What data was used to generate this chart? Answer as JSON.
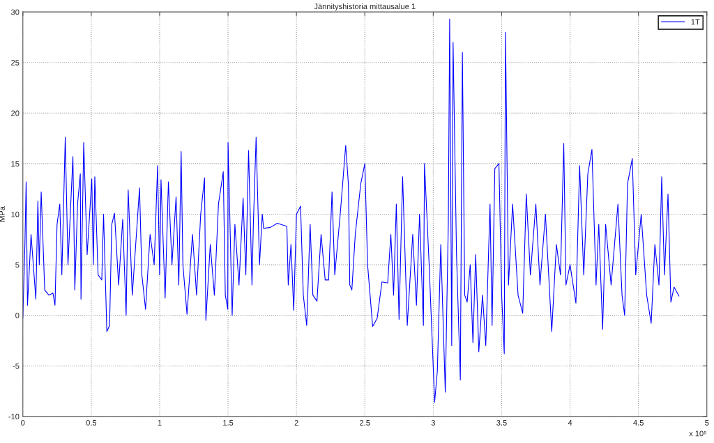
{
  "chart_data": {
    "type": "line",
    "title": "Jännityshistoria mittausalue 1",
    "ylabel": "MPa",
    "x": [
      0,
      0.015,
      0.024,
      0.034,
      0.06,
      0.095,
      0.11,
      0.12,
      0.134,
      0.16,
      0.19,
      0.22,
      0.235,
      0.25,
      0.27,
      0.285,
      0.31,
      0.33,
      0.366,
      0.38,
      0.4,
      0.42,
      0.425,
      0.445,
      0.47,
      0.504,
      0.515,
      0.526,
      0.55,
      0.577,
      0.59,
      0.614,
      0.634,
      0.65,
      0.67,
      0.7,
      0.73,
      0.755,
      0.77,
      0.8,
      0.83,
      0.853,
      0.87,
      0.897,
      0.93,
      0.96,
      0.985,
      1.0,
      1.01,
      1.04,
      1.064,
      1.09,
      1.12,
      1.14,
      1.157,
      1.17,
      1.2,
      1.24,
      1.27,
      1.3,
      1.328,
      1.338,
      1.37,
      1.4,
      1.43,
      1.465,
      1.48,
      1.498,
      1.5,
      1.53,
      1.55,
      1.58,
      1.61,
      1.63,
      1.65,
      1.675,
      1.685,
      1.705,
      1.73,
      1.75,
      1.76,
      1.81,
      1.86,
      1.93,
      1.94,
      1.96,
      1.98,
      2.0,
      2.03,
      2.05,
      2.075,
      2.1,
      2.12,
      2.15,
      2.18,
      2.21,
      2.235,
      2.26,
      2.28,
      2.32,
      2.36,
      2.38,
      2.39,
      2.405,
      2.43,
      2.47,
      2.5,
      2.52,
      2.557,
      2.59,
      2.625,
      2.667,
      2.69,
      2.71,
      2.73,
      2.75,
      2.776,
      2.81,
      2.85,
      2.877,
      2.9,
      2.928,
      2.936,
      2.97,
      3.004,
      3.01,
      3.03,
      3.055,
      3.088,
      3.11,
      3.12,
      3.135,
      3.145,
      3.17,
      3.198,
      3.213,
      3.23,
      3.248,
      3.27,
      3.29,
      3.31,
      3.333,
      3.36,
      3.384,
      3.415,
      3.43,
      3.45,
      3.48,
      3.5,
      3.519,
      3.528,
      3.55,
      3.58,
      3.62,
      3.654,
      3.68,
      3.71,
      3.75,
      3.78,
      3.82,
      3.866,
      3.9,
      3.93,
      3.954,
      3.97,
      4.0,
      4.043,
      4.07,
      4.1,
      4.13,
      4.16,
      4.19,
      4.21,
      4.238,
      4.26,
      4.3,
      4.35,
      4.38,
      4.399,
      4.42,
      4.455,
      4.48,
      4.52,
      4.56,
      4.593,
      4.62,
      4.65,
      4.67,
      4.69,
      4.716,
      4.737,
      4.76,
      4.796
    ],
    "series": [
      {
        "name": "1T",
        "color": "#0000ff",
        "values": [
          -0.3,
          7,
          13.2,
          1,
          8,
          1.6,
          11.3,
          5,
          12.2,
          2.5,
          2,
          2.2,
          1,
          9,
          11,
          4,
          17.6,
          5,
          15.7,
          2.5,
          11,
          14,
          1.6,
          17.1,
          6,
          13.5,
          5,
          13.7,
          4,
          3.5,
          10,
          -1.6,
          -1,
          9,
          10.1,
          3,
          9.5,
          0,
          12.4,
          2,
          8,
          12.6,
          4,
          0.6,
          8,
          5,
          14.8,
          4,
          13.4,
          1.7,
          13.2,
          5,
          11.7,
          3,
          16.2,
          5,
          0.1,
          8,
          2,
          10,
          13.6,
          -0.5,
          7,
          2,
          11,
          14.2,
          2,
          0.6,
          17.1,
          0,
          9,
          3,
          11.6,
          4,
          16.3,
          3,
          9,
          17.6,
          5,
          10,
          8.6,
          8.7,
          9.1,
          8.8,
          3,
          7,
          0.5,
          10,
          10.8,
          2,
          -1,
          9,
          2,
          1.4,
          8,
          3.5,
          3.5,
          12.2,
          4,
          10,
          16.8,
          12.9,
          3,
          2.5,
          8,
          13,
          15,
          5,
          -1.1,
          -0.3,
          3.3,
          3.2,
          8,
          2,
          11,
          -0.4,
          13.7,
          -1,
          8,
          1,
          10,
          -1,
          15,
          5,
          -6.5,
          -8.6,
          -5.5,
          7,
          -7.6,
          9,
          29.3,
          -3,
          27,
          6,
          -6.4,
          26,
          2,
          1.3,
          5,
          -2.7,
          6,
          -3.6,
          2,
          -3,
          11,
          -1,
          14.5,
          15,
          2,
          -3.8,
          28,
          3,
          11,
          2,
          0.2,
          12,
          4,
          11,
          3,
          10,
          -1.6,
          7,
          4,
          17,
          3,
          5,
          1.2,
          14.8,
          4,
          14,
          16.4,
          3,
          9,
          -1.4,
          9,
          3,
          11,
          2,
          0,
          13,
          15.5,
          4,
          10,
          2,
          -0.8,
          7,
          3,
          13.7,
          4,
          12,
          1.3,
          2.8,
          1.9
        ]
      }
    ],
    "xlim": [
      0,
      5
    ],
    "xticks": [
      0,
      0.5,
      1,
      1.5,
      2,
      2.5,
      3,
      3.5,
      4,
      4.5,
      5
    ],
    "ylim": [
      -10,
      30
    ],
    "yticks": [
      -10,
      -5,
      0,
      5,
      10,
      15,
      20,
      25,
      30
    ],
    "grid": true,
    "legend": "top right",
    "marker": "none",
    "line_style": "solid",
    "annotations": [
      "x 10⁵"
    ]
  }
}
